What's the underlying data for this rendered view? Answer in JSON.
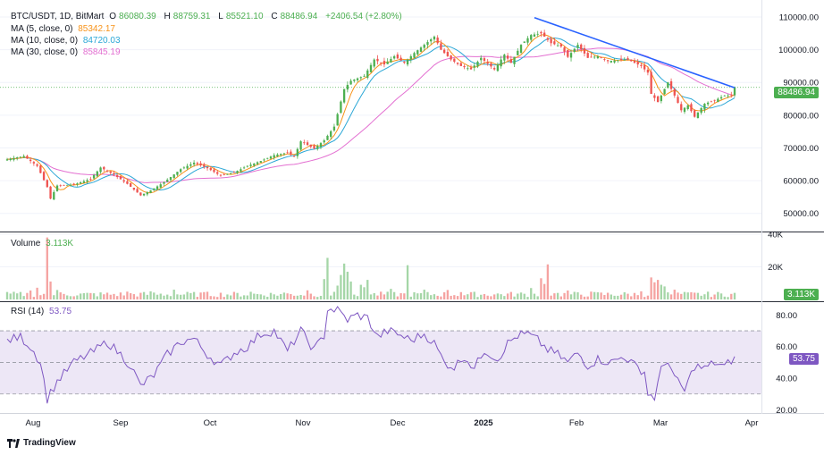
{
  "header": {
    "symbol": "BTC/USDT, 1D, BitMart",
    "o_label": "O",
    "o_value": "86080.39",
    "h_label": "H",
    "h_value": "88759.31",
    "l_label": "L",
    "l_value": "85521.10",
    "c_label": "C",
    "c_value": "88486.94",
    "change": "+2406.54 (+2.80%)",
    "ma5_label": "MA (5, close, 0)",
    "ma5_value": "85342.17",
    "ma5_color": "#f7931a",
    "ma10_label": "MA (10, close, 0)",
    "ma10_value": "84720.03",
    "ma10_color": "#2ba7d6",
    "ma30_label": "MA (30, close, 0)",
    "ma30_value": "85845.19",
    "ma30_color": "#e36fd1"
  },
  "volume_legend": {
    "label": "Volume",
    "value": "3.113K"
  },
  "rsi_legend": {
    "label": "RSI (14)",
    "value": "53.75"
  },
  "last_price_tag": "88486.94",
  "last_volume_tag": "3.113K",
  "last_rsi_tag": "53.75",
  "branding": "TradingView",
  "colors": {
    "up": "#26a69a",
    "up_bright": "#4caf50",
    "down": "#ef5350",
    "trend": "#2962ff",
    "rsi": "#7e57c2",
    "rsi_band": "#ede7f6"
  },
  "chart_data": [
    {
      "type": "candlestick",
      "title": "BTC/USDT, 1D, BitMart",
      "x_ticks": [
        "Aug",
        "Sep",
        "Oct",
        "Nov",
        "Dec",
        "2025",
        "Feb",
        "Mar",
        "Apr"
      ],
      "y_ticks": [
        "110000.00",
        "100000.00",
        "90000.00",
        "80000.00",
        "70000.00",
        "60000.00",
        "50000.00"
      ],
      "ylim": [
        45000,
        113000
      ],
      "anchors_close": [
        [
          0,
          66500
        ],
        [
          5,
          67500
        ],
        [
          9,
          64500
        ],
        [
          12,
          58000
        ],
        [
          13,
          54500
        ],
        [
          15,
          58500
        ],
        [
          20,
          58800
        ],
        [
          25,
          60500
        ],
        [
          28,
          64000
        ],
        [
          32,
          61800
        ],
        [
          36,
          59000
        ],
        [
          40,
          55500
        ],
        [
          43,
          57000
        ],
        [
          47,
          59500
        ],
        [
          52,
          63500
        ],
        [
          56,
          65500
        ],
        [
          60,
          63800
        ],
        [
          64,
          61500
        ],
        [
          68,
          62500
        ],
        [
          72,
          64500
        ],
        [
          76,
          66000
        ],
        [
          80,
          67800
        ],
        [
          84,
          68500
        ],
        [
          86,
          67300
        ],
        [
          88,
          72000
        ],
        [
          92,
          69800
        ],
        [
          95,
          72300
        ],
        [
          98,
          76500
        ],
        [
          101,
          88000
        ],
        [
          103,
          90500
        ],
        [
          107,
          92000
        ],
        [
          110,
          97000
        ],
        [
          113,
          95500
        ],
        [
          116,
          98000
        ],
        [
          119,
          96000
        ],
        [
          122,
          99000
        ],
        [
          125,
          101500
        ],
        [
          128,
          104000
        ],
        [
          130,
          100000
        ],
        [
          133,
          97000
        ],
        [
          136,
          95000
        ],
        [
          139,
          94000
        ],
        [
          142,
          97500
        ],
        [
          146,
          94000
        ],
        [
          149,
          98500
        ],
        [
          151,
          96000
        ],
        [
          154,
          101500
        ],
        [
          157,
          104500
        ],
        [
          160,
          105000
        ],
        [
          163,
          102000
        ],
        [
          166,
          101000
        ],
        [
          168,
          97800
        ],
        [
          171,
          101500
        ],
        [
          174,
          97500
        ],
        [
          177,
          98000
        ],
        [
          180,
          96500
        ],
        [
          183,
          96800
        ],
        [
          186,
          97000
        ],
        [
          188,
          96000
        ],
        [
          190,
          95000
        ],
        [
          192,
          93000
        ],
        [
          193,
          86500
        ],
        [
          195,
          84000
        ],
        [
          198,
          90000
        ],
        [
          200,
          86000
        ],
        [
          202,
          81500
        ],
        [
          204,
          83000
        ],
        [
          206,
          79500
        ],
        [
          209,
          83500
        ],
        [
          212,
          84500
        ],
        [
          215,
          86000
        ],
        [
          217,
          86080
        ],
        [
          218,
          88487
        ]
      ],
      "ma_series": [
        "MA (5, close, 0)",
        "MA (10, close, 0)",
        "MA (30, close, 0)"
      ],
      "trendline": {
        "from": [
          158,
          109800
        ],
        "to": [
          218,
          88400
        ]
      },
      "last_close": 88486.94,
      "last_change": "+2406.54 (+2.80%)"
    },
    {
      "type": "bar",
      "title": "Volume",
      "y_ticks": [
        "40K",
        "20K"
      ],
      "ylim": [
        0,
        40000
      ],
      "typical": 3000,
      "spikes": [
        [
          7,
          5500
        ],
        [
          9,
          7200
        ],
        [
          12,
          38000
        ],
        [
          13,
          11000
        ],
        [
          15,
          5800
        ],
        [
          36,
          4800
        ],
        [
          43,
          5000
        ],
        [
          50,
          6000
        ],
        [
          59,
          4500
        ],
        [
          73,
          4700
        ],
        [
          83,
          4200
        ],
        [
          90,
          5600
        ],
        [
          95,
          12500
        ],
        [
          96,
          25500
        ],
        [
          99,
          8500
        ],
        [
          100,
          15000
        ],
        [
          101,
          22000
        ],
        [
          102,
          17000
        ],
        [
          103,
          11000
        ],
        [
          106,
          9000
        ],
        [
          107,
          7500
        ],
        [
          108,
          12000
        ],
        [
          115,
          6500
        ],
        [
          120,
          21000
        ],
        [
          125,
          6000
        ],
        [
          132,
          5800
        ],
        [
          136,
          4500
        ],
        [
          157,
          7000
        ],
        [
          160,
          13000
        ],
        [
          161,
          9500
        ],
        [
          162,
          21500
        ],
        [
          165,
          4000
        ],
        [
          168,
          5500
        ],
        [
          175,
          4800
        ],
        [
          190,
          5000
        ],
        [
          193,
          13500
        ],
        [
          194,
          10500
        ],
        [
          195,
          12000
        ],
        [
          196,
          9000
        ],
        [
          197,
          8000
        ],
        [
          200,
          6000
        ]
      ],
      "last_value": "3.113K"
    },
    {
      "type": "line",
      "title": "RSI (14)",
      "y_ticks": [
        "80.00",
        "60.00",
        "40.00",
        "20.00"
      ],
      "ylim": [
        18,
        87
      ],
      "bands": [
        30,
        50,
        70
      ],
      "values": [
        [
          0,
          64
        ],
        [
          4,
          66
        ],
        [
          7,
          60
        ],
        [
          10,
          50
        ],
        [
          12,
          27
        ],
        [
          15,
          38
        ],
        [
          20,
          50
        ],
        [
          26,
          57
        ],
        [
          30,
          63
        ],
        [
          34,
          55
        ],
        [
          37,
          48
        ],
        [
          40,
          35
        ],
        [
          44,
          42
        ],
        [
          48,
          55
        ],
        [
          52,
          63
        ],
        [
          56,
          65
        ],
        [
          60,
          55
        ],
        [
          64,
          48
        ],
        [
          68,
          56
        ],
        [
          72,
          60
        ],
        [
          76,
          68
        ],
        [
          80,
          70
        ],
        [
          84,
          57
        ],
        [
          88,
          70
        ],
        [
          92,
          58
        ],
        [
          95,
          67
        ],
        [
          96,
          84
        ],
        [
          99,
          83
        ],
        [
          102,
          77
        ],
        [
          105,
          80
        ],
        [
          108,
          78
        ],
        [
          111,
          66
        ],
        [
          114,
          70
        ],
        [
          117,
          68
        ],
        [
          121,
          64
        ],
        [
          125,
          68
        ],
        [
          128,
          62
        ],
        [
          131,
          50
        ],
        [
          134,
          47
        ],
        [
          137,
          54
        ],
        [
          140,
          46
        ],
        [
          143,
          58
        ],
        [
          147,
          52
        ],
        [
          150,
          62
        ],
        [
          153,
          67
        ],
        [
          156,
          68
        ],
        [
          159,
          64
        ],
        [
          162,
          58
        ],
        [
          165,
          55
        ],
        [
          168,
          50
        ],
        [
          171,
          56
        ],
        [
          174,
          48
        ],
        [
          177,
          52
        ],
        [
          181,
          50
        ],
        [
          185,
          54
        ],
        [
          188,
          48
        ],
        [
          191,
          44
        ],
        [
          192,
          30
        ],
        [
          194,
          28
        ],
        [
          196,
          45
        ],
        [
          198,
          52
        ],
        [
          200,
          40
        ],
        [
          203,
          32
        ],
        [
          206,
          48
        ],
        [
          209,
          46
        ],
        [
          212,
          50
        ],
        [
          215,
          47
        ],
        [
          218,
          53.75
        ]
      ],
      "last_value": "53.75"
    }
  ]
}
